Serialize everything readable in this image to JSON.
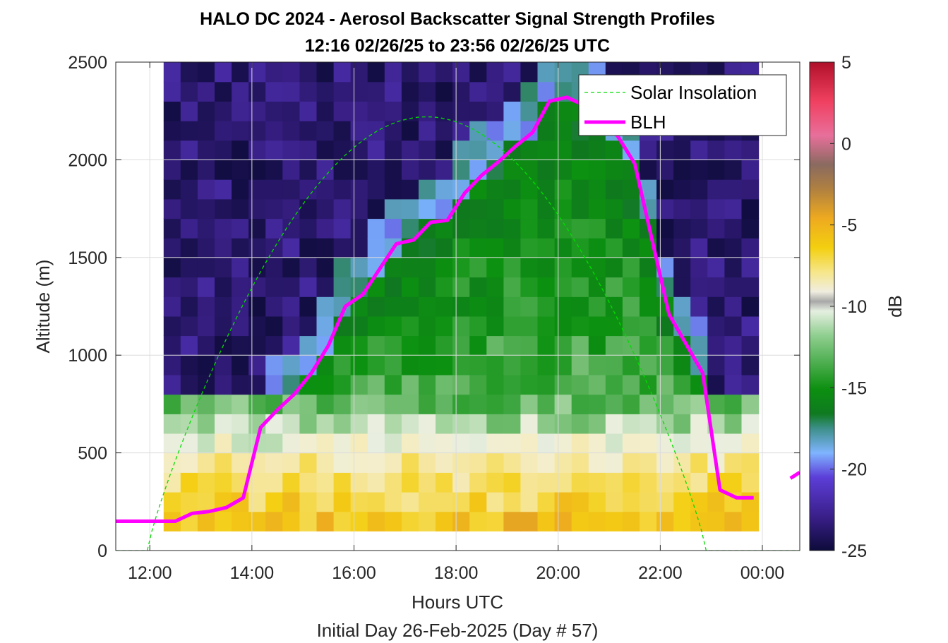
{
  "chart_data": {
    "type": "heatmap",
    "title": "HALO DC 2024 - Aerosol Backscatter Signal Strength Profiles",
    "subtitle": "12:16 02/26/25 to 23:56 02/26/25  UTC",
    "xlabel": "Hours UTC",
    "ylabel": "Altitude (m)",
    "footer": "Initial Day 26-Feb-2025 (Day # 57)",
    "colorbar_label": "dB",
    "xlim": [
      11.333,
      24.733
    ],
    "ylim": [
      0,
      2500
    ],
    "x_ticks": [
      12,
      14,
      16,
      18,
      20,
      22,
      24
    ],
    "x_tick_labels": [
      "12:00",
      "14:00",
      "16:00",
      "18:00",
      "20:00",
      "22:00",
      "00:00"
    ],
    "y_ticks": [
      0,
      500,
      1000,
      1500,
      2000,
      2500
    ],
    "y_tick_labels": [
      "0",
      "500",
      "1000",
      "1500",
      "2000",
      "2500"
    ],
    "colorbar_range": [
      -25,
      5
    ],
    "colorbar_ticks": [
      5,
      0,
      -5,
      -10,
      -15,
      -20,
      -25
    ],
    "colorbar_tick_labels": [
      "5",
      "0",
      "-5",
      "-10",
      "-15",
      "-20",
      "-25"
    ],
    "heatmap_x_start": 12.27,
    "heatmap_x_step": 0.333,
    "heatmap_columns": 35,
    "heatmap_y_start": 100,
    "heatmap_y_step": 100,
    "heatmap_rows": 24,
    "legend": {
      "placement": "top-right",
      "entries": [
        {
          "label": "Solar Insolation",
          "color": "#00dd00",
          "style": "dashed"
        },
        {
          "label": "BLH",
          "color": "#ff00ff",
          "style": "solid"
        }
      ]
    },
    "series": [
      {
        "name": "BLH",
        "color": "#ff00ff",
        "x": [
          11.333,
          12.5,
          12.83,
          13.17,
          13.5,
          13.83,
          14.17,
          14.5,
          14.83,
          15.17,
          15.5,
          15.83,
          16.17,
          16.5,
          16.83,
          17.17,
          17.5,
          17.83,
          18.17,
          18.5,
          18.83,
          19.17,
          19.5,
          19.83,
          20.17,
          20.5,
          20.83,
          21.17,
          21.5,
          21.83,
          22.17,
          22.5,
          22.83,
          23.17,
          23.5,
          23.83
        ],
        "y": [
          150,
          150,
          190,
          200,
          220,
          270,
          630,
          720,
          800,
          910,
          1050,
          1250,
          1310,
          1440,
          1570,
          1590,
          1680,
          1690,
          1830,
          1920,
          1990,
          2070,
          2140,
          2300,
          2320,
          2280,
          2220,
          2120,
          1980,
          1600,
          1210,
          1060,
          910,
          310,
          270,
          270
        ]
      },
      {
        "name": "BLH",
        "color": "#ff00ff",
        "x": [
          24.55,
          24.733
        ],
        "y": [
          370,
          400
        ]
      },
      {
        "name": "Solar Insolation",
        "color": "#00dd00",
        "x_range": [
          11.95,
          22.9
        ],
        "peak_x": 17.42,
        "peak_y": 2220
      }
    ]
  }
}
